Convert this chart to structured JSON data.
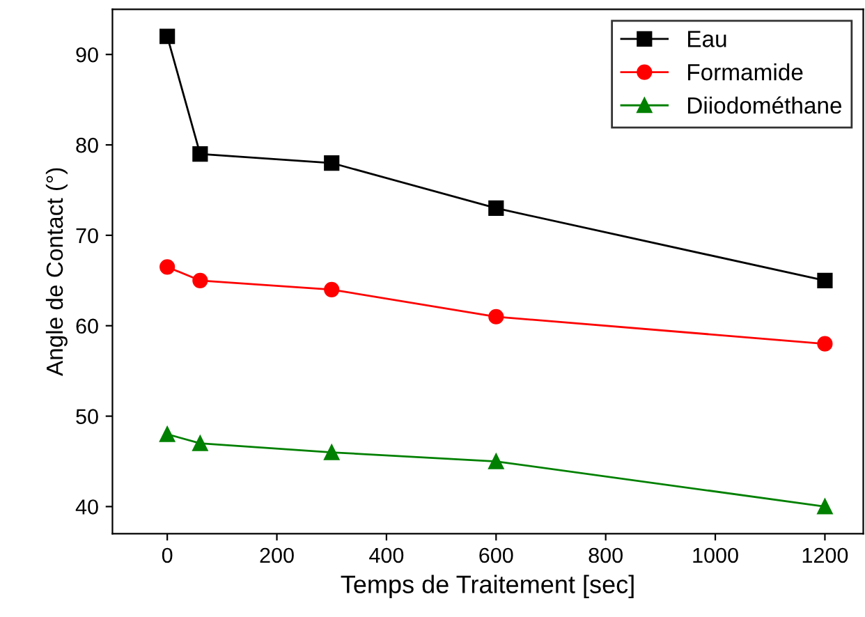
{
  "chart_data": {
    "type": "line",
    "xlabel": "Temps de Traitement [sec]",
    "ylabel": "Angle de Contact (°)",
    "x": [
      0,
      60,
      300,
      600,
      1200
    ],
    "series": [
      {
        "name": "Eau",
        "color": "#000000",
        "marker": "square",
        "values": [
          92,
          79,
          78,
          73,
          65
        ]
      },
      {
        "name": "Formamide",
        "color": "#ff0000",
        "marker": "circle",
        "values": [
          66.5,
          65,
          64,
          61,
          58
        ]
      },
      {
        "name": "Diiodométhane",
        "color": "#008000",
        "marker": "triangle",
        "values": [
          48,
          47,
          46,
          45,
          40
        ]
      }
    ],
    "xlim": [
      -100,
      1270
    ],
    "xticks": [
      0,
      200,
      400,
      600,
      800,
      1000,
      1200
    ],
    "ylim": [
      37,
      95
    ],
    "yticks": [
      40,
      50,
      60,
      70,
      80,
      90
    ],
    "legend": "top right",
    "grid": false,
    "line_style": "solid"
  }
}
